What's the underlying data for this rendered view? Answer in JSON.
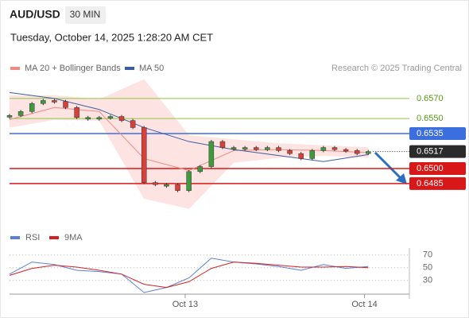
{
  "header": {
    "symbol": "AUD/USD",
    "interval": "30 MIN",
    "timestamp": "Tuesday, October 14, 2025 1:28:20 AM CET",
    "attribution": "Research © 2025 Trading Central"
  },
  "chart_data": [
    {
      "type": "candlestick",
      "x": [
        0,
        3,
        6,
        9,
        12,
        15,
        18,
        21,
        24,
        27,
        30,
        33,
        36,
        39,
        42,
        45,
        48,
        51,
        54,
        57,
        60,
        63,
        66,
        69,
        72,
        75,
        78,
        81,
        84,
        87,
        90,
        93,
        96
      ],
      "close": [
        0.6553,
        0.6557,
        0.6565,
        0.6568,
        0.6567,
        0.6561,
        0.6551,
        0.6551,
        0.6551,
        0.6552,
        0.6548,
        0.6541,
        0.6486,
        0.6484,
        0.6484,
        0.6478,
        0.6497,
        0.6502,
        0.6527,
        0.6521,
        0.6521,
        0.6521,
        0.6519,
        0.6521,
        0.6518,
        0.6515,
        0.651,
        0.6518,
        0.6521,
        0.6519,
        0.6518,
        0.6515,
        0.6517
      ],
      "up_color": "#3d9a3d",
      "down_color": "#d8403a",
      "xlim": [
        0,
        107
      ],
      "ylim": [
        0.6446,
        0.6589
      ],
      "series": [
        {
          "name": "MA 20 + Bollinger Bands",
          "color": "#f08a80",
          "band_color": "#fde3e1",
          "x": [
            0,
            12,
            24,
            36,
            48,
            60,
            72,
            84,
            96
          ],
          "values": [
            0.6549,
            0.6561,
            0.6557,
            0.651,
            0.6498,
            0.6518,
            0.6519,
            0.6518,
            0.6516
          ],
          "upper": [
            0.6573,
            0.6573,
            0.6569,
            0.6589,
            0.6533,
            0.6529,
            0.6525,
            0.6523,
            0.6521
          ],
          "lower": [
            0.6541,
            0.6549,
            0.6548,
            0.647,
            0.646,
            0.6506,
            0.6511,
            0.6513,
            0.6511
          ]
        },
        {
          "name": "MA 50",
          "color": "#3a5fa0",
          "x": [
            0,
            12,
            24,
            36,
            48,
            60,
            72,
            84,
            96
          ],
          "values": [
            0.6576,
            0.657,
            0.6559,
            0.6541,
            0.6527,
            0.6519,
            0.6513,
            0.6507,
            0.6514
          ]
        }
      ],
      "levels": [
        {
          "value": 0.657,
          "label": "0.6570",
          "color": "#8cc63f",
          "boxed": false
        },
        {
          "value": 0.655,
          "label": "0.6550",
          "color": "#8cc63f",
          "boxed": false
        },
        {
          "value": 0.6535,
          "label": "0.6535",
          "color": "#3b6fe0",
          "boxed": true
        },
        {
          "value": 0.6517,
          "label": "0.6517",
          "color": "#2b2b2b",
          "boxed": true,
          "dotted": true
        },
        {
          "value": 0.65,
          "label": "0.6500",
          "color": "#d81818",
          "boxed": true
        },
        {
          "value": 0.6485,
          "label": "0.6485",
          "color": "#d81818",
          "boxed": true
        }
      ]
    },
    {
      "type": "line",
      "x": [
        0,
        6,
        12,
        18,
        24,
        30,
        36,
        42,
        48,
        54,
        60,
        66,
        72,
        78,
        84,
        90,
        96
      ],
      "series": [
        {
          "name": "RSI",
          "color": "#5b7fd6",
          "values": [
            40,
            59,
            55,
            46,
            44,
            40,
            11,
            19,
            34,
            65,
            59,
            56,
            52,
            46,
            55,
            49,
            52
          ]
        },
        {
          "name": "9MA",
          "color": "#d62020",
          "values": [
            38,
            49,
            54,
            51,
            46,
            40,
            24,
            19,
            28,
            49,
            59,
            57,
            54,
            51,
            51,
            52,
            50
          ]
        }
      ],
      "xlim": [
        0,
        107
      ],
      "ylim": [
        11,
        81
      ],
      "yticks": [
        70,
        50,
        30
      ],
      "grid": true,
      "xticks": [
        {
          "value": 47,
          "label": "Oct 13"
        },
        {
          "value": 95,
          "label": "Oct 14"
        }
      ]
    }
  ]
}
